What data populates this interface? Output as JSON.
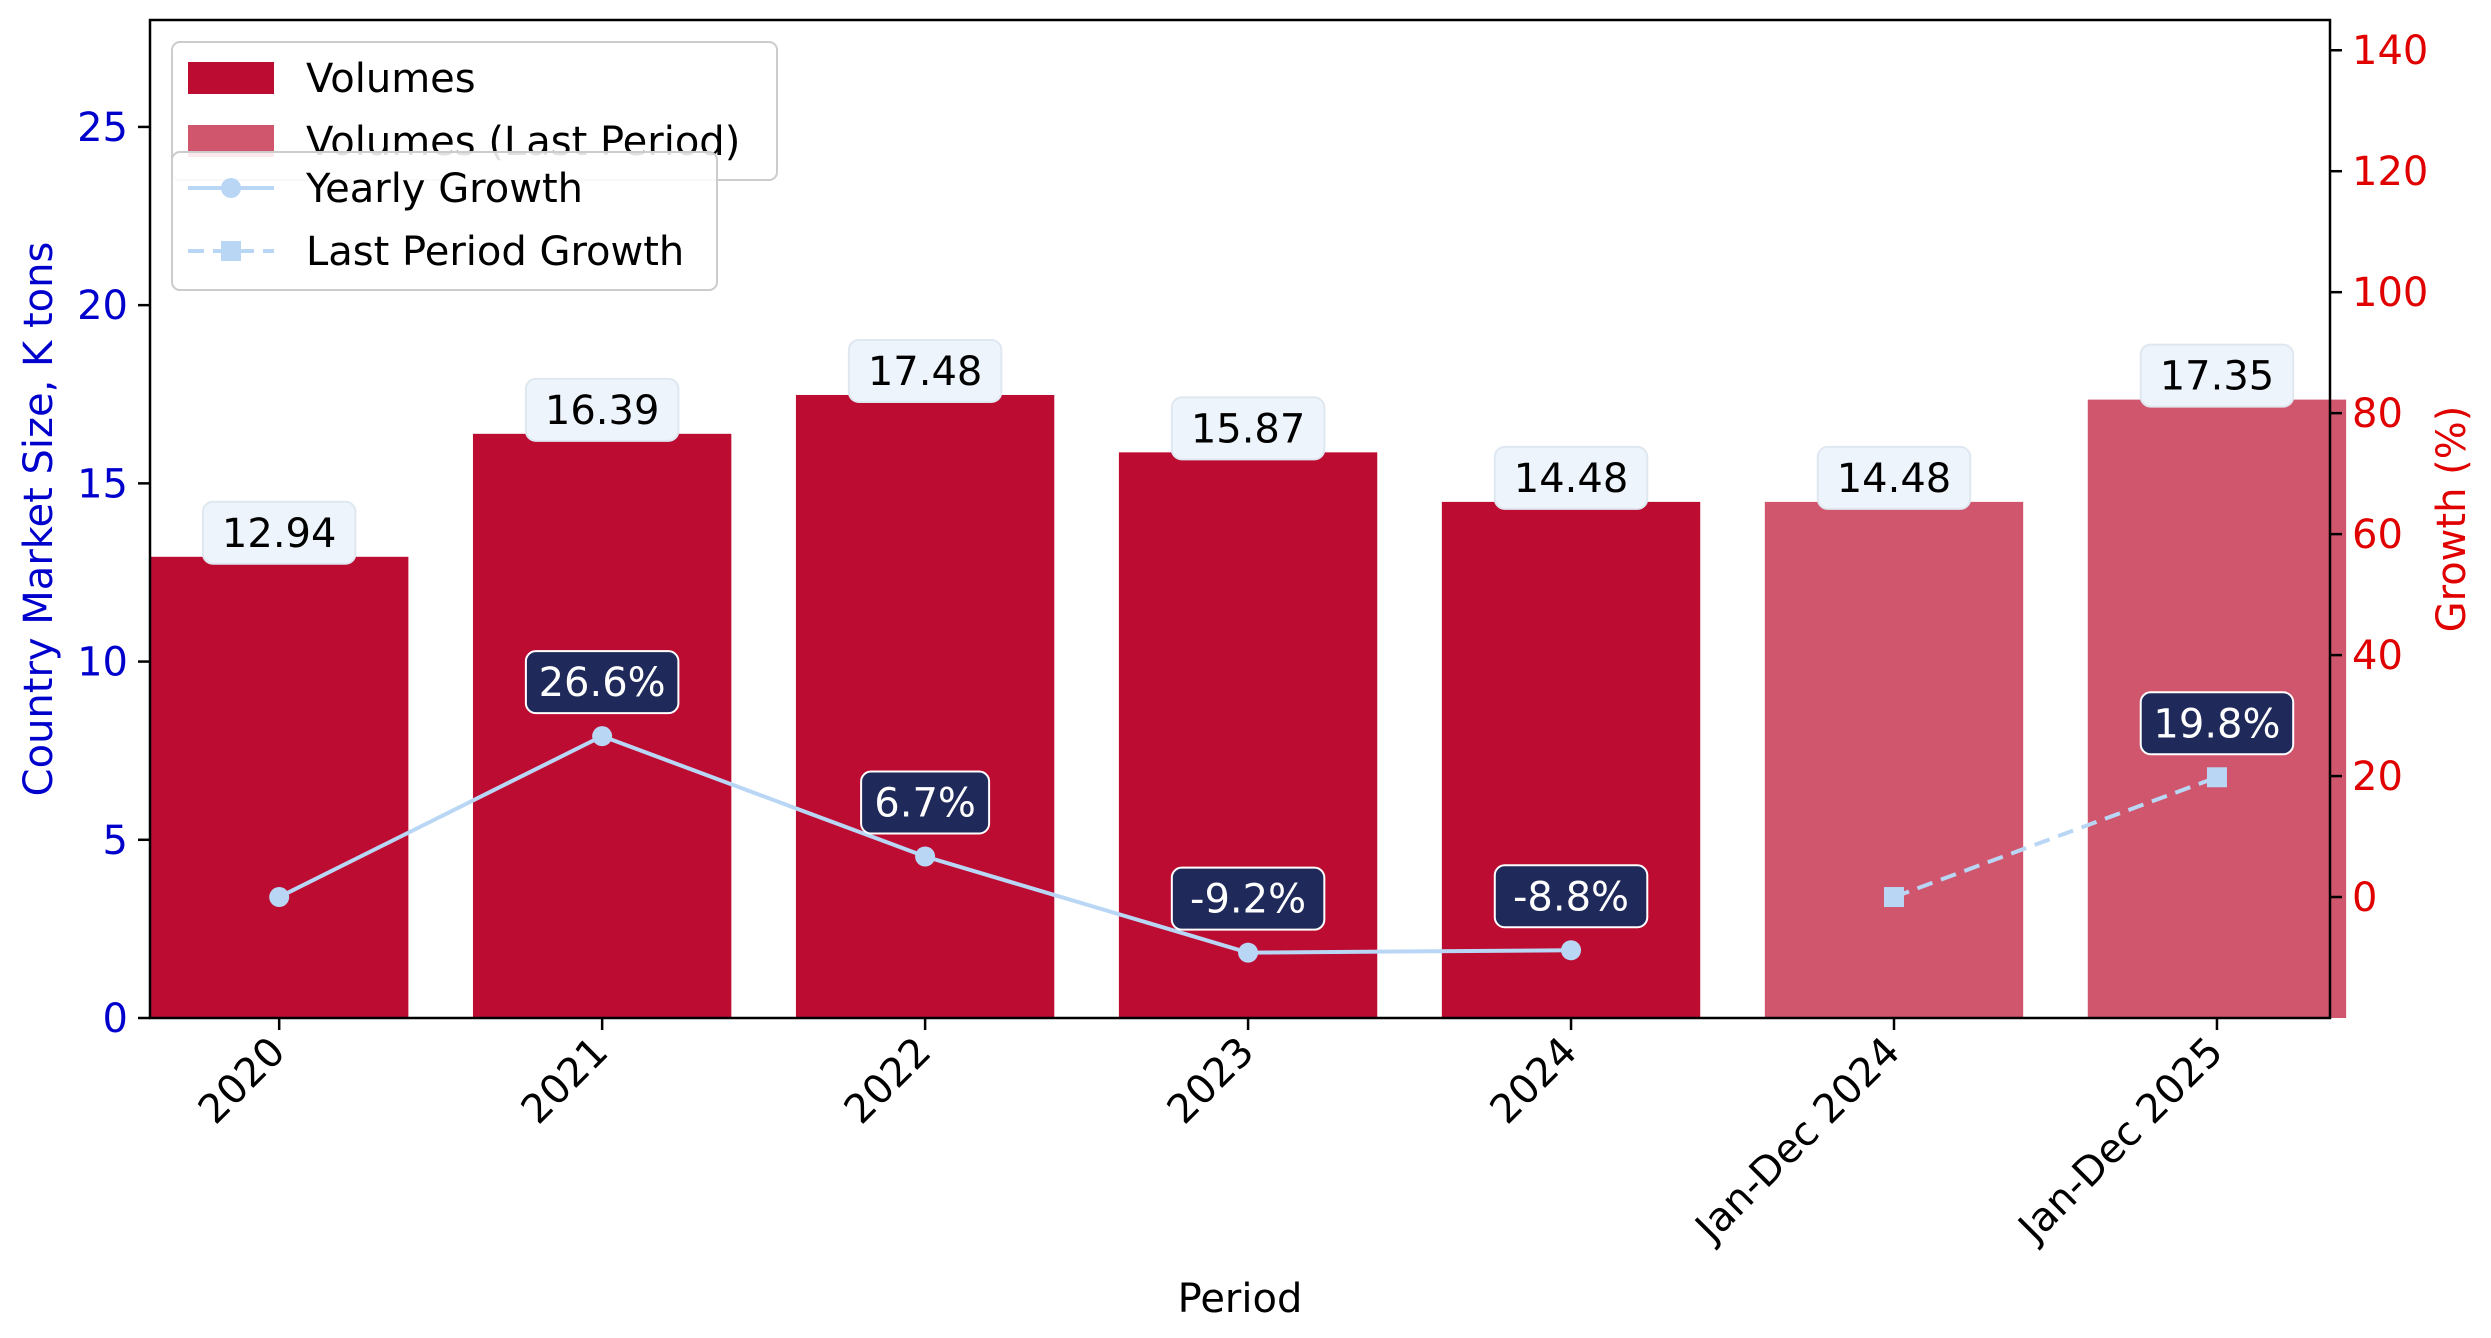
{
  "chart_data": {
    "type": "bar",
    "categories": [
      "2020",
      "2021",
      "2022",
      "2023",
      "2024",
      "Jan-Dec 2024",
      "Jan-Dec 2025"
    ],
    "xlabel": "Period",
    "ylabel": "Country Market Size, K tons",
    "y2label": "Growth (%)",
    "ylim": [
      0,
      28
    ],
    "y2lim": [
      -20,
      145
    ],
    "yticks": [
      0,
      5,
      10,
      15,
      20,
      25
    ],
    "y2ticks": [
      0,
      20,
      40,
      60,
      80,
      100,
      120,
      140
    ],
    "series": [
      {
        "name": "Volumes",
        "kind": "bar",
        "axis": "left",
        "color": "#bc0c32",
        "values": [
          12.94,
          16.39,
          17.48,
          15.87,
          14.48,
          null,
          null
        ],
        "labels": [
          "12.94",
          "16.39",
          "17.48",
          "15.87",
          "14.48",
          "",
          ""
        ]
      },
      {
        "name": "Volumes (Last Period)",
        "kind": "bar",
        "axis": "left",
        "color": "#d0566d",
        "values": [
          null,
          null,
          null,
          null,
          null,
          14.48,
          17.35
        ],
        "labels": [
          "",
          "",
          "",
          "",
          "",
          "14.48",
          "17.35"
        ]
      },
      {
        "name": "Yearly Growth",
        "kind": "line",
        "axis": "right",
        "color": "#b9d7f5",
        "marker": "circle",
        "values": [
          0,
          26.6,
          6.7,
          -9.2,
          -8.8,
          null,
          null
        ],
        "labels": [
          "",
          "26.6%",
          "6.7%",
          "-9.2%",
          "-8.8%",
          "",
          ""
        ]
      },
      {
        "name": "Last Period Growth",
        "kind": "line",
        "axis": "right",
        "color": "#b9d7f5",
        "marker": "square",
        "dashed": true,
        "values": [
          null,
          null,
          null,
          null,
          null,
          0,
          19.8
        ],
        "labels": [
          "",
          "",
          "",
          "",
          "",
          "",
          "19.8%"
        ]
      }
    ],
    "legend": {
      "placement": "top-left",
      "bars": [
        "Volumes",
        "Volumes (Last Period)"
      ],
      "lines": [
        "Yearly Growth",
        "Last Period Growth"
      ]
    },
    "colors": {
      "left_axis": "#0000cc",
      "right_axis": "#e00000",
      "growth_label_bg": "#1f2a5a",
      "volume_label_bg": "#eef4fb"
    }
  }
}
